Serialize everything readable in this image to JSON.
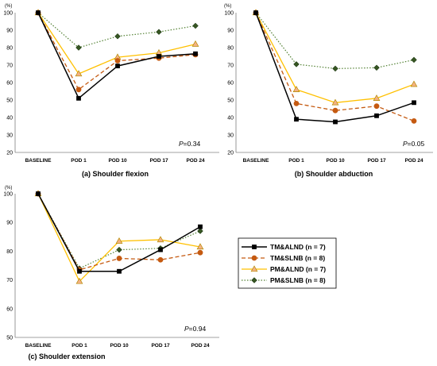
{
  "legend": [
    {
      "name": "TM&ALND (n = 7)",
      "color": "#000000",
      "dash": "",
      "marker": "square",
      "fill": "#000000",
      "width": 1.5
    },
    {
      "name": "TM&SLNB (n = 8)",
      "color": "#c55a11",
      "dash": "5,3",
      "marker": "circle",
      "fill": "#c55a11",
      "width": 1.3
    },
    {
      "name": "PM&ALND (n = 7)",
      "color": "#ffc000",
      "dash": "",
      "marker": "triangle",
      "fill": "#f4b183",
      "width": 1.3
    },
    {
      "name": "PM&SLNB (n = 8)",
      "color": "#548235",
      "dash": "1.5,2",
      "marker": "diamond",
      "fill": "#375623",
      "width": 1.2
    }
  ],
  "chart_data": [
    {
      "type": "line",
      "title": "(a) Shoulder flexion",
      "unit_label": "(%)",
      "p_prefix": "P",
      "p_value": "=0.34",
      "categories": [
        "BASELINE",
        "POD 1",
        "POD 10",
        "POD 17",
        "POD 24"
      ],
      "ylim": [
        20,
        100
      ],
      "yticks": [
        "20",
        "30",
        "40",
        "50",
        "60",
        "70",
        "80",
        "90",
        "100"
      ],
      "series": [
        {
          "name": "TM&ALND (n = 7)",
          "values": [
            100,
            51,
            69.5,
            75,
            76.5
          ]
        },
        {
          "name": "TM&SLNB (n = 8)",
          "values": [
            100,
            56,
            72.5,
            74,
            76
          ]
        },
        {
          "name": "PM&ALND (n = 7)",
          "values": [
            100,
            65,
            74.5,
            77,
            82
          ]
        },
        {
          "name": "PM&SLNB (n = 8)",
          "values": [
            100,
            80,
            86.5,
            89,
            92.5
          ]
        }
      ]
    },
    {
      "type": "line",
      "title": "(b) Shoulder abduction",
      "unit_label": "(%)",
      "p_prefix": "P",
      "p_value": "=0.05",
      "categories": [
        "BASELINE",
        "POD 1",
        "POD 10",
        "POD 17",
        "POD 24"
      ],
      "ylim": [
        20,
        100
      ],
      "yticks": [
        "20",
        "30",
        "40",
        "50",
        "60",
        "70",
        "80",
        "90",
        "100"
      ],
      "series": [
        {
          "name": "TM&ALND (n = 7)",
          "values": [
            100,
            39,
            37.5,
            41,
            48.5
          ]
        },
        {
          "name": "TM&SLNB (n = 8)",
          "values": [
            100,
            48,
            44,
            46.5,
            38
          ]
        },
        {
          "name": "PM&ALND (n = 7)",
          "values": [
            100,
            56,
            48.5,
            51,
            59
          ]
        },
        {
          "name": "PM&SLNB (n = 8)",
          "values": [
            100,
            70.5,
            68,
            68.5,
            73
          ]
        }
      ]
    },
    {
      "type": "line",
      "title": "(c) Shoulder extension",
      "unit_label": "(%)",
      "p_prefix": "P",
      "p_value": "=0.94",
      "categories": [
        "BASELINE",
        "POD 1",
        "POD 10",
        "POD 17",
        "POD 24"
      ],
      "ylim": [
        50,
        100
      ],
      "yticks": [
        "50",
        "60",
        "70",
        "80",
        "90",
        "100"
      ],
      "series": [
        {
          "name": "TM&ALND (n = 7)",
          "values": [
            100,
            73,
            73,
            80.5,
            88.5
          ]
        },
        {
          "name": "TM&SLNB (n = 8)",
          "values": [
            100,
            73.5,
            77.5,
            77,
            79.5
          ]
        },
        {
          "name": "PM&ALND (n = 7)",
          "values": [
            100,
            69.5,
            83.5,
            84,
            81.5
          ]
        },
        {
          "name": "PM&SLNB (n = 8)",
          "values": [
            100,
            74,
            80.5,
            81,
            87
          ]
        }
      ]
    }
  ]
}
